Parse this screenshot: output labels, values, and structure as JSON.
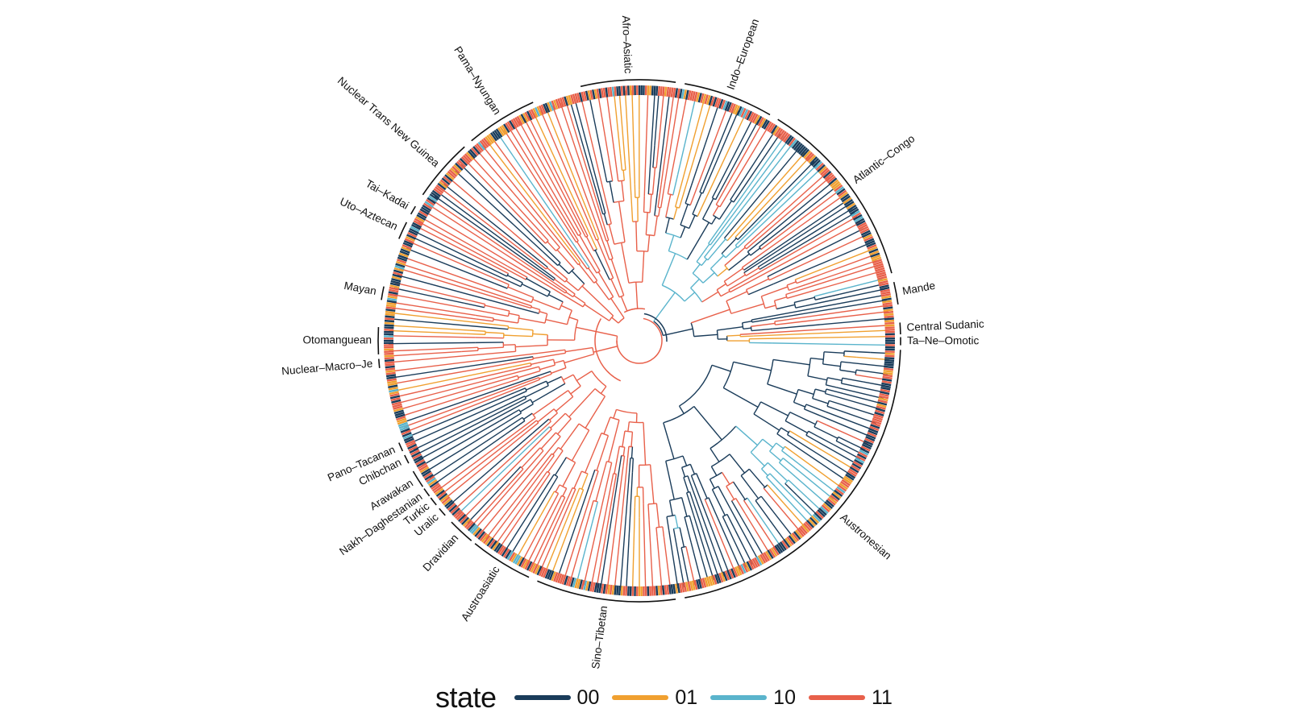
{
  "figure": {
    "center": null,
    "families": [
      {
        "name": "Afro–Asiatic",
        "start": -13,
        "end": 8
      },
      {
        "name": "Indo–European",
        "start": 10,
        "end": 30
      },
      {
        "name": "Atlantic–Congo",
        "start": 32,
        "end": 75
      },
      {
        "name": "Mande",
        "start": 77,
        "end": 82
      },
      {
        "name": "Central Sudanic",
        "start": 86,
        "end": 88.6
      },
      {
        "name": "Ta–Ne–Omotic",
        "start": 89.2,
        "end": 91
      },
      {
        "name": "Austronesian",
        "start": 92,
        "end": 170
      },
      {
        "name": "Sino–Tibetan",
        "start": 172,
        "end": 203
      },
      {
        "name": "Austroasiatic",
        "start": 205,
        "end": 219
      },
      {
        "name": "Dravidian",
        "start": 220,
        "end": 226
      },
      {
        "name": "Uralic",
        "start": 228,
        "end": 230
      },
      {
        "name": "Turkic",
        "start": 231,
        "end": 233
      },
      {
        "name": "Nakh–Daghestanian",
        "start": 233.5,
        "end": 235.5
      },
      {
        "name": "Arawakan",
        "start": 236,
        "end": 240
      },
      {
        "name": "Chibchan",
        "start": 242,
        "end": 244
      },
      {
        "name": "Pano–Tacanan",
        "start": 245,
        "end": 247
      },
      {
        "name": "Nuclear–Macro–Je",
        "start": 264,
        "end": 266
      },
      {
        "name": "Otomanguean",
        "start": 267,
        "end": 273
      },
      {
        "name": "Mayan",
        "start": 279,
        "end": 282
      },
      {
        "name": "Uto–Aztecan",
        "start": 293,
        "end": 297
      },
      {
        "name": "Tai–Kadai",
        "start": 299,
        "end": 301
      },
      {
        "name": "Nuclear Trans New Guinea",
        "start": 304,
        "end": 318
      },
      {
        "name": "Pama–Nyungan",
        "start": 320,
        "end": 336
      }
    ]
  },
  "legend": {
    "title": "state",
    "items": [
      {
        "label": "00",
        "color": "#1a3c5a"
      },
      {
        "label": "01",
        "color": "#f0a030"
      },
      {
        "label": "10",
        "color": "#5ab4cc"
      },
      {
        "label": "11",
        "color": "#e8604a"
      }
    ]
  }
}
